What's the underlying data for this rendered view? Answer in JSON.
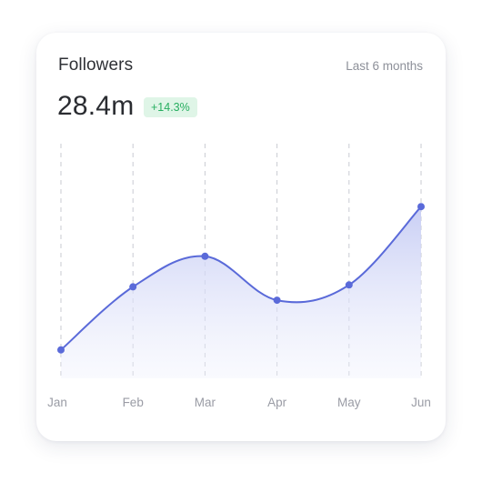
{
  "card": {
    "title": "Followers",
    "range_label": "Last 6 months",
    "total": "28.4m",
    "change": "+14.3%"
  },
  "colors": {
    "line": "#5a6ad9",
    "area_top": "#c6ccf4",
    "badge_bg": "#dff5e7",
    "badge_text": "#27ae60"
  },
  "chart_data": {
    "type": "area",
    "categories": [
      "Jan",
      "Feb",
      "Mar",
      "Apr",
      "May",
      "Jun"
    ],
    "values": [
      6.5,
      23.0,
      31.0,
      19.5,
      23.5,
      44.0
    ],
    "ylim": [
      0,
      60
    ],
    "grid": "vertical-dashed",
    "smooth": true
  }
}
